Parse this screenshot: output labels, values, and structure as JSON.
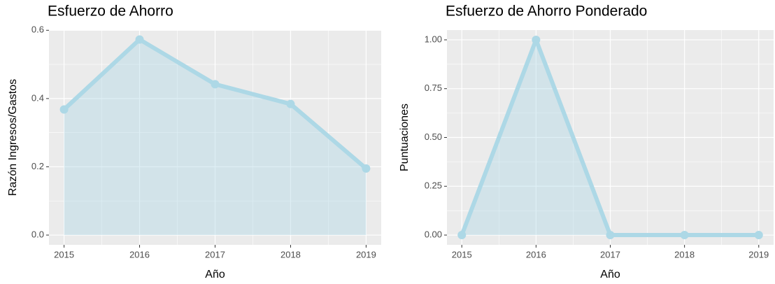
{
  "chart_data": [
    {
      "type": "area-line",
      "title": "Esfuerzo de Ahorro",
      "x_label": "Año",
      "y_label": "Razón Ingresos/Gastos",
      "x": [
        2015,
        2016,
        2017,
        2018,
        2019
      ],
      "xlim": [
        2014.8,
        2019.2
      ],
      "xticks": [
        2015,
        2016,
        2017,
        2018,
        2019
      ],
      "series": [
        {
          "color": "#add8e6",
          "values": [
            0.368,
            0.573,
            0.442,
            0.384,
            0.195
          ]
        }
      ],
      "ylim": [
        -0.0286,
        0.6006
      ],
      "yticks": [
        {
          "value": 0,
          "label": "0.0"
        },
        {
          "value": 0.2,
          "label": "0.2"
        },
        {
          "value": 0.4,
          "label": "0.4"
        },
        {
          "value": 0.6,
          "label": "0.6"
        }
      ],
      "grid": true
    },
    {
      "type": "area-line",
      "title": "Esfuerzo de Ahorro Ponderado",
      "x_label": "Año",
      "y_label": "Puntuaciones",
      "x": [
        2015,
        2016,
        2017,
        2018,
        2019
      ],
      "xlim": [
        2014.8,
        2019.2
      ],
      "xticks": [
        2015,
        2016,
        2017,
        2018,
        2019
      ],
      "series": [
        {
          "color": "#add8e6",
          "values": [
            0,
            1,
            0,
            0,
            0
          ]
        }
      ],
      "ylim": [
        -0.05,
        1.05
      ],
      "yticks": [
        {
          "value": 0,
          "label": "0.00"
        },
        {
          "value": 0.25,
          "label": "0.25"
        },
        {
          "value": 0.5,
          "label": "0.50"
        },
        {
          "value": 0.75,
          "label": "0.75"
        },
        {
          "value": 1,
          "label": "1.00"
        }
      ],
      "grid": true
    }
  ]
}
